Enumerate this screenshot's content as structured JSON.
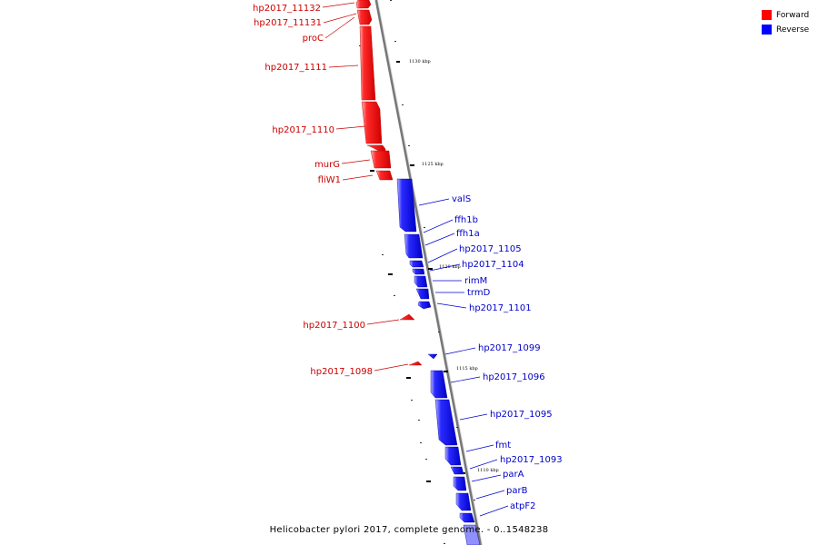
{
  "legend": {
    "forward": {
      "label": "Forward",
      "color": "#ff0000"
    },
    "reverse": {
      "label": "Reverse",
      "color": "#0000ff"
    }
  },
  "caption": "Helicobacter pylori 2017, complete genome. - 0..1548238",
  "scale_labels": [
    "1130 kbp",
    "1125 kbp",
    "1120 kbp",
    "1115 kbp",
    "1110 kbp"
  ],
  "forward_genes": [
    "hp2017_11132",
    "hp2017_11131",
    "proC",
    "hp2017_1111",
    "hp2017_1110",
    "murG",
    "fliW1",
    "hp2017_1100",
    "hp2017_1098"
  ],
  "reverse_genes": [
    "valS",
    "ffh1b",
    "ffh1a",
    "hp2017_1105",
    "hp2017_1104",
    "rimM",
    "trmD",
    "hp2017_1101",
    "hp2017_1099",
    "hp2017_1096",
    "hp2017_1095",
    "fmt",
    "hp2017_1093",
    "parA",
    "parB",
    "atpF2"
  ]
}
